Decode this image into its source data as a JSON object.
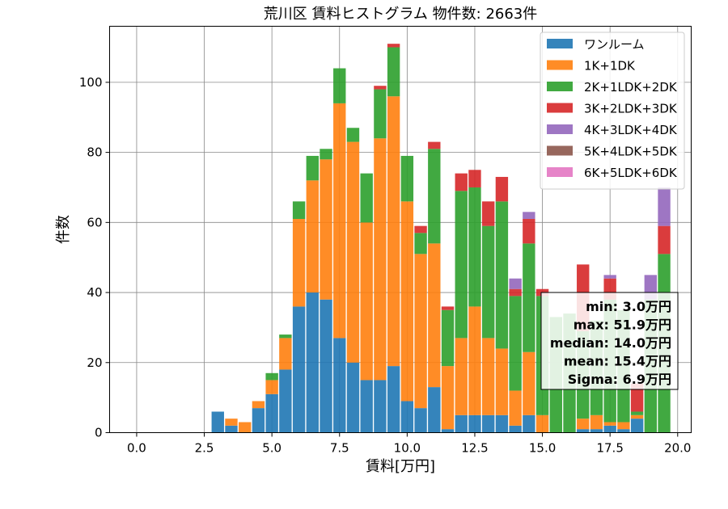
{
  "chart_data": {
    "type": "bar",
    "stacked": true,
    "title": "荒川区 賃料ヒストグラム 物件数: 2663件",
    "xlabel": "賃料[万円]",
    "ylabel": "件数",
    "xlim": [
      -1.0,
      20.5
    ],
    "ylim": [
      0,
      116
    ],
    "xticks": [
      0.0,
      2.5,
      5.0,
      7.5,
      10.0,
      12.5,
      15.0,
      17.5,
      20.0
    ],
    "xtick_labels": [
      "0.0",
      "2.5",
      "5.0",
      "7.5",
      "10.0",
      "12.5",
      "15.0",
      "17.5",
      "20.0"
    ],
    "yticks": [
      0,
      20,
      40,
      60,
      80,
      100
    ],
    "ytick_labels": [
      "0",
      "20",
      "40",
      "60",
      "80",
      "100"
    ],
    "grid": true,
    "legend_position": "top-right",
    "bin_width": 0.5,
    "x": [
      3.0,
      3.5,
      4.0,
      4.5,
      5.0,
      5.5,
      6.0,
      6.5,
      7.0,
      7.5,
      8.0,
      8.5,
      9.0,
      9.5,
      10.0,
      10.5,
      11.0,
      11.5,
      12.0,
      12.5,
      13.0,
      13.5,
      14.0,
      14.5,
      15.0,
      15.5,
      16.0,
      16.5,
      17.0,
      17.5,
      18.0,
      18.5,
      19.0,
      19.5
    ],
    "series": [
      {
        "name": "ワンルーム",
        "color": "#1f77b4",
        "values": [
          6,
          2,
          0,
          7,
          11,
          18,
          36,
          40,
          38,
          27,
          20,
          15,
          15,
          19,
          9,
          7,
          13,
          1,
          5,
          5,
          5,
          5,
          2,
          5,
          0,
          0,
          0,
          1,
          1,
          2,
          1,
          4,
          0,
          0
        ]
      },
      {
        "name": "1K+1DK",
        "color": "#ff7f0e",
        "values": [
          0,
          2,
          3,
          2,
          4,
          9,
          25,
          32,
          40,
          67,
          63,
          45,
          69,
          77,
          57,
          44,
          41,
          18,
          22,
          31,
          22,
          19,
          10,
          18,
          5,
          0,
          0,
          3,
          4,
          1,
          2,
          1,
          0,
          0
        ]
      },
      {
        "name": "2K+1LDK+2DK",
        "color": "#2ca02c",
        "values": [
          0,
          0,
          0,
          0,
          2,
          1,
          5,
          7,
          3,
          10,
          4,
          14,
          14,
          14,
          13,
          6,
          27,
          16,
          42,
          34,
          32,
          42,
          27,
          31,
          34,
          33,
          34,
          25,
          27,
          35,
          32,
          1,
          38,
          51
        ]
      },
      {
        "name": "3K+2LDK+3DK",
        "color": "#d62728",
        "values": [
          0,
          0,
          0,
          0,
          0,
          0,
          0,
          0,
          0,
          0,
          0,
          0,
          1,
          1,
          0,
          2,
          2,
          1,
          5,
          5,
          7,
          7,
          2,
          7,
          2,
          0,
          0,
          19,
          0,
          6,
          0,
          8,
          0,
          8
        ]
      },
      {
        "name": "4K+3LDK+4DK",
        "color": "#9467bd",
        "values": [
          0,
          0,
          0,
          0,
          0,
          0,
          0,
          0,
          0,
          0,
          0,
          0,
          0,
          0,
          0,
          0,
          0,
          0,
          0,
          0,
          0,
          0,
          3,
          2,
          0,
          0,
          0,
          0,
          0,
          1,
          0,
          0,
          7,
          11
        ]
      },
      {
        "name": "5K+4LDK+5DK",
        "color": "#8c564b",
        "values": [
          0,
          0,
          0,
          0,
          0,
          0,
          0,
          0,
          0,
          0,
          0,
          0,
          0,
          0,
          0,
          0,
          0,
          0,
          0,
          0,
          0,
          0,
          0,
          0,
          0,
          0,
          0,
          0,
          0,
          0,
          0,
          0,
          0,
          0
        ]
      },
      {
        "name": "6K+5LDK+6DK",
        "color": "#e377c2",
        "values": [
          0,
          0,
          0,
          0,
          0,
          0,
          0,
          0,
          0,
          0,
          0,
          0,
          0,
          0,
          0,
          0,
          0,
          0,
          0,
          0,
          0,
          0,
          0,
          0,
          0,
          0,
          0,
          0,
          0,
          0,
          0,
          0,
          0,
          0
        ]
      }
    ],
    "stats_box": {
      "position": "right",
      "lines": [
        "min: 3.0万円",
        "max: 51.9万円",
        "median: 14.0万円",
        "mean: 15.4万円",
        "Sigma: 6.9万円"
      ]
    }
  }
}
